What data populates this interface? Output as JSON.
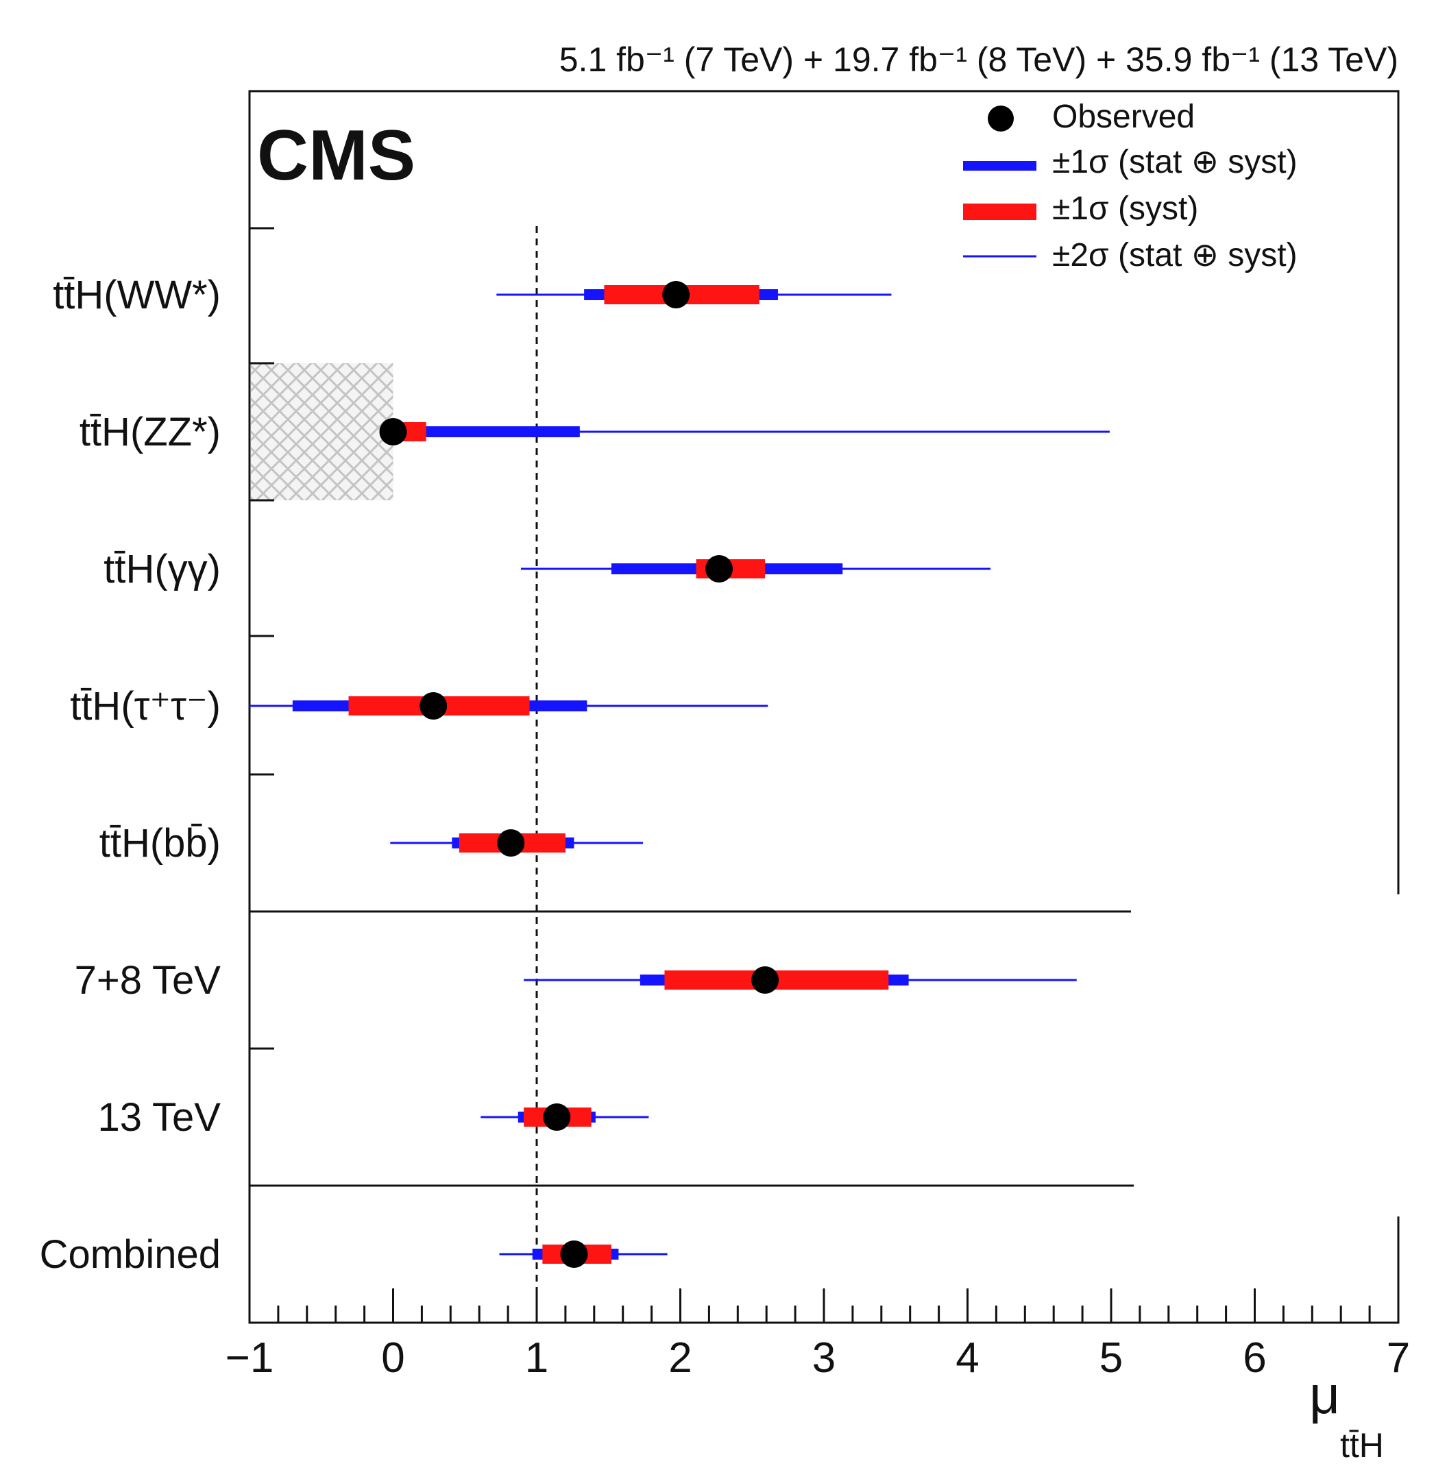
{
  "chart_data": {
    "type": "forest",
    "lumi_label": "5.1 fb⁻¹ (7 TeV) + 19.7 fb⁻¹ (8 TeV) + 35.9 fb⁻¹ (13 TeV)",
    "experiment": "CMS",
    "xlabel": "μ",
    "xlabel_sub": "tt̄H",
    "xlim": [
      -1,
      7
    ],
    "xticks": [
      -1,
      0,
      1,
      2,
      3,
      4,
      5,
      6,
      7
    ],
    "reference_line": 1,
    "legend": [
      {
        "key": "observed",
        "label": "Observed"
      },
      {
        "key": "total1",
        "label": "±1σ (stat ⊕ syst)"
      },
      {
        "key": "syst1",
        "label": "±1σ (syst)"
      },
      {
        "key": "total2",
        "label": "±2σ (stat ⊕ syst)"
      }
    ],
    "categories": [
      {
        "label": "tt̄H(WW*)",
        "mu": 1.97,
        "total1": [
          1.33,
          2.68
        ],
        "syst1": [
          1.47,
          2.55
        ],
        "total2": [
          0.72,
          3.47
        ]
      },
      {
        "label": "tt̄H(ZZ*)",
        "mu": 0.0,
        "total1": [
          0.0,
          1.3
        ],
        "syst1": [
          0.0,
          0.23
        ],
        "total2": [
          0.0,
          4.99
        ],
        "excluded_below": 0
      },
      {
        "label": "tt̄H(γγ)",
        "mu": 2.27,
        "total1": [
          1.52,
          3.13
        ],
        "syst1": [
          2.11,
          2.59
        ],
        "total2": [
          0.89,
          4.16
        ]
      },
      {
        "label": "tt̄H(τ⁺τ⁻)",
        "mu": 0.28,
        "total1": [
          -0.7,
          1.35
        ],
        "syst1": [
          -0.31,
          0.95
        ],
        "total2": [
          -1.0,
          2.61
        ]
      },
      {
        "label": "tt̄H(bb̄)",
        "mu": 0.82,
        "total1": [
          0.41,
          1.26
        ],
        "syst1": [
          0.46,
          1.2
        ],
        "total2": [
          -0.02,
          1.74
        ]
      },
      {
        "label": "7+8 TeV",
        "mu": 2.59,
        "total1": [
          1.72,
          3.59
        ],
        "syst1": [
          1.89,
          3.45
        ],
        "total2": [
          0.91,
          4.76
        ]
      },
      {
        "label": "13 TeV",
        "mu": 1.14,
        "total1": [
          0.87,
          1.41
        ],
        "syst1": [
          0.91,
          1.38
        ],
        "total2": [
          0.61,
          1.78
        ]
      },
      {
        "label": "Combined",
        "mu": 1.26,
        "total1": [
          0.97,
          1.57
        ],
        "syst1": [
          1.04,
          1.52
        ],
        "total2": [
          0.74,
          1.91
        ]
      }
    ]
  }
}
